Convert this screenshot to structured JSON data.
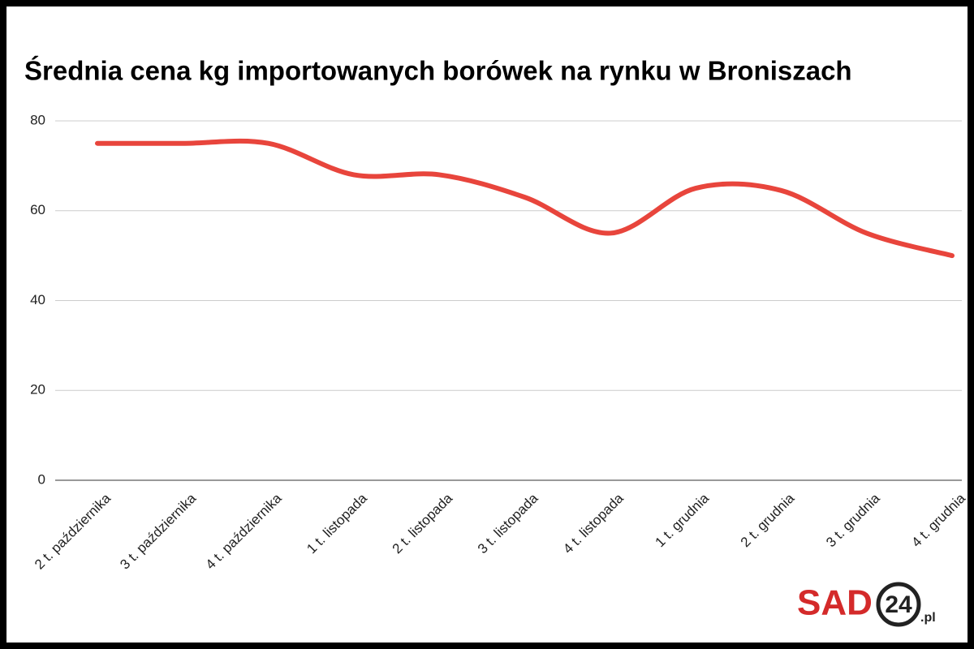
{
  "chart_data": {
    "type": "line",
    "title": "Średnia cena kg importowanych borówek na rynku w Broniszach",
    "categories": [
      "2 t. października",
      "3 t. października",
      "4 t. października",
      "1 t. listopada",
      "2 t. listopada",
      "3 t. listopada",
      "4 t. listopada",
      "1 t. grudnia",
      "2 t. grudnia",
      "3 t. grudnia",
      "4 t. grudnia"
    ],
    "series": [
      {
        "name": "Średnia cena",
        "color": "#e8453c",
        "values": [
          75,
          75,
          75,
          68,
          68,
          63,
          55,
          65,
          64.5,
          55,
          50
        ]
      }
    ],
    "ylim": [
      0,
      80
    ],
    "yticks": [
      0,
      20,
      40,
      60,
      80
    ],
    "grid": true,
    "logo": {
      "text": "SAD",
      "number": "24",
      "suffix": ".pl"
    }
  }
}
